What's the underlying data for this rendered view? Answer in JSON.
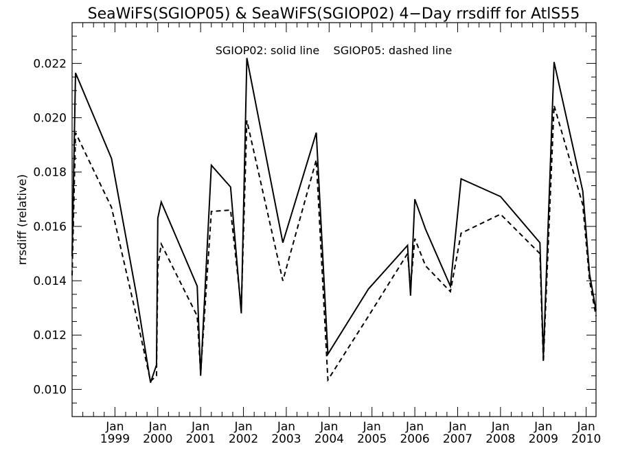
{
  "chart_data": {
    "type": "line",
    "title": "SeaWiFS(SGIOP05) & SeaWiFS(SGIOP02) 4−Day rrsdiff for AtlS55",
    "annotation": "SGIOP02: solid line    SGIOP05: dashed line",
    "xlabel": "",
    "ylabel": "rrsdiff (relative)",
    "ylim": [
      0.009,
      0.0235
    ],
    "xlim": [
      1998.0,
      2010.23
    ],
    "y_ticks": [
      "0.010",
      "0.012",
      "0.014",
      "0.016",
      "0.018",
      "0.020",
      "0.022"
    ],
    "x_ticks": [
      {
        "top": "Jan",
        "bottom": "1999"
      },
      {
        "top": "Jan",
        "bottom": "2000"
      },
      {
        "top": "Jan",
        "bottom": "2001"
      },
      {
        "top": "Jan",
        "bottom": "2002"
      },
      {
        "top": "Jan",
        "bottom": "2003"
      },
      {
        "top": "Jan",
        "bottom": "2004"
      },
      {
        "top": "Jan",
        "bottom": "2005"
      },
      {
        "top": "Jan",
        "bottom": "2006"
      },
      {
        "top": "Jan",
        "bottom": "2007"
      },
      {
        "top": "Jan",
        "bottom": "2008"
      },
      {
        "top": "Jan",
        "bottom": "2009"
      },
      {
        "top": "Jan",
        "bottom": "2010"
      }
    ],
    "series": [
      {
        "name": "SGIOP02",
        "style": "solid",
        "points": [
          [
            1998.0,
            0.0149
          ],
          [
            1998.08,
            0.02165
          ],
          [
            1998.92,
            0.0185
          ],
          [
            1999.5,
            0.0135
          ],
          [
            1999.83,
            0.01025
          ],
          [
            1999.97,
            0.0109
          ],
          [
            2000.0,
            0.0163
          ],
          [
            2000.08,
            0.0169
          ],
          [
            2000.92,
            0.0138
          ],
          [
            2001.0,
            0.0105
          ],
          [
            2001.25,
            0.01825
          ],
          [
            2001.7,
            0.01745
          ],
          [
            2001.95,
            0.0128
          ],
          [
            2002.08,
            0.0222
          ],
          [
            2002.92,
            0.0154
          ],
          [
            2003.7,
            0.01945
          ],
          [
            2003.97,
            0.0113
          ],
          [
            2004.92,
            0.0137
          ],
          [
            2005.83,
            0.0153
          ],
          [
            2005.9,
            0.01345
          ],
          [
            2006.0,
            0.017
          ],
          [
            2006.25,
            0.0159
          ],
          [
            2006.83,
            0.0138
          ],
          [
            2007.08,
            0.01775
          ],
          [
            2008.0,
            0.0171
          ],
          [
            2008.92,
            0.0154
          ],
          [
            2009.0,
            0.0112
          ],
          [
            2009.25,
            0.02205
          ],
          [
            2009.92,
            0.0173
          ],
          [
            2010.08,
            0.01425
          ],
          [
            2010.23,
            0.0129
          ]
        ]
      },
      {
        "name": "SGIOP05",
        "style": "dashed",
        "points": [
          [
            1998.0,
            0.0142
          ],
          [
            1998.08,
            0.01945
          ],
          [
            1998.92,
            0.0167
          ],
          [
            1999.5,
            0.0127
          ],
          [
            1999.83,
            0.0103
          ],
          [
            1999.97,
            0.0105
          ],
          [
            2000.0,
            0.0145
          ],
          [
            2000.08,
            0.01535
          ],
          [
            2000.92,
            0.0127
          ],
          [
            2001.0,
            0.0106
          ],
          [
            2001.25,
            0.01655
          ],
          [
            2001.7,
            0.0166
          ],
          [
            2001.95,
            0.013
          ],
          [
            2002.08,
            0.0199
          ],
          [
            2002.92,
            0.014
          ],
          [
            2003.7,
            0.01845
          ],
          [
            2003.97,
            0.01035
          ],
          [
            2004.92,
            0.0127
          ],
          [
            2005.83,
            0.015
          ],
          [
            2005.9,
            0.0138
          ],
          [
            2006.0,
            0.01555
          ],
          [
            2006.25,
            0.01455
          ],
          [
            2006.83,
            0.0136
          ],
          [
            2007.08,
            0.01575
          ],
          [
            2008.0,
            0.01645
          ],
          [
            2008.92,
            0.015
          ],
          [
            2009.0,
            0.011
          ],
          [
            2009.25,
            0.02045
          ],
          [
            2009.92,
            0.0168
          ],
          [
            2010.08,
            0.014
          ],
          [
            2010.23,
            0.0127
          ]
        ]
      }
    ]
  }
}
